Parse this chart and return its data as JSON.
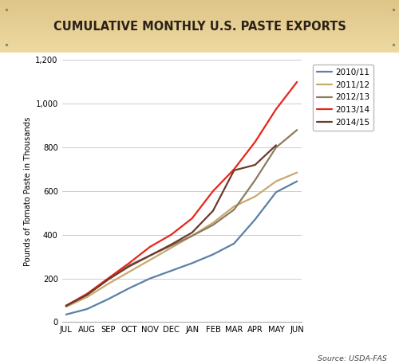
{
  "title": "CUMULATIVE MONTHLY U.S. PASTE EXPORTS",
  "ylabel": "Pounds of Tomato Paste in Thousands",
  "source": "Source: USDA-FAS",
  "months": [
    "JUL",
    "AUG",
    "SEP",
    "OCT",
    "NOV",
    "DEC",
    "JAN",
    "FEB",
    "MAR",
    "APR",
    "MAY",
    "JUN"
  ],
  "series": [
    {
      "label": "2010/11",
      "color": "#5B7FA6",
      "data": [
        35,
        60,
        105,
        155,
        200,
        235,
        270,
        310,
        360,
        470,
        595,
        645
      ]
    },
    {
      "label": "2011/12",
      "color": "#C8A96E",
      "data": [
        70,
        115,
        175,
        230,
        285,
        340,
        395,
        455,
        530,
        575,
        645,
        685
      ]
    },
    {
      "label": "2012/13",
      "color": "#8C7B5E",
      "data": [
        75,
        125,
        195,
        260,
        305,
        350,
        395,
        445,
        515,
        650,
        800,
        880
      ]
    },
    {
      "label": "2013/14",
      "color": "#E8251A",
      "data": [
        75,
        130,
        200,
        270,
        345,
        400,
        475,
        600,
        700,
        825,
        975,
        1100
      ]
    },
    {
      "label": "2014/15",
      "color": "#6B3A2A",
      "data": [
        75,
        125,
        195,
        255,
        305,
        355,
        410,
        510,
        695,
        720,
        810,
        null
      ]
    }
  ],
  "ylim": [
    0,
    1200
  ],
  "yticks": [
    0,
    200,
    400,
    600,
    800,
    1000,
    1200
  ],
  "background_color": "#FFFFFF",
  "header_bg_top": "#EDD9A3",
  "header_bg_bot": "#D4B97A",
  "grid_color": "#CCCCCC",
  "header_text_color": "#2B2118"
}
